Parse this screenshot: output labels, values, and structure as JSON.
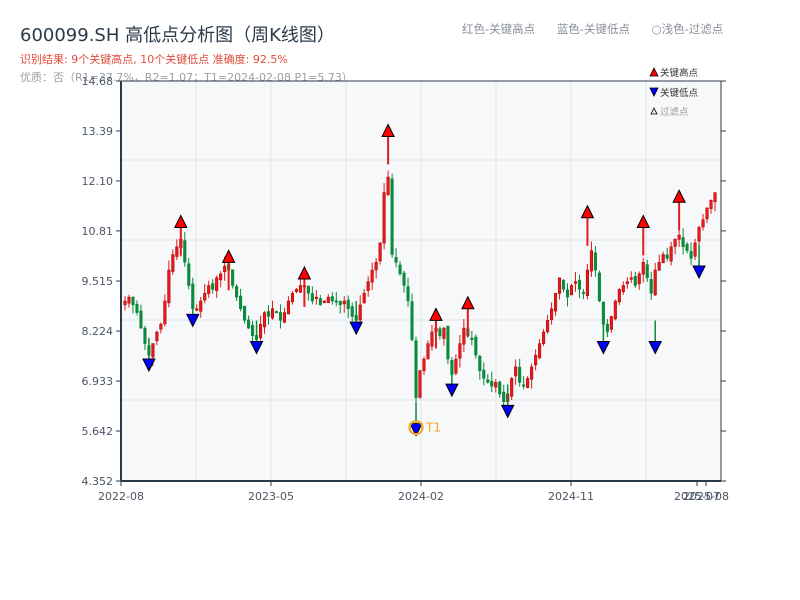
{
  "header": {
    "title": "600099.SH 高低点分析图（周K线图）",
    "result_line": "识别结果: 9个关键高点, 10个关键低点   准确度: 92.5%",
    "quality_line": "优质：否（R1=37.7%，R2=1.07；T1=2024-02-08 P1=5.73）"
  },
  "top_legend": {
    "red": "红色-关键高点",
    "blue": "蓝色-关键低点",
    "light": "○浅色-过滤点"
  },
  "plot_legend": {
    "high": "关键高点",
    "low": "关键低点",
    "filtered": "过滤点"
  },
  "colors": {
    "up": "#e41a1c",
    "up_border": "#b00000",
    "down": "#0a8a3a",
    "high_marker": "#ff0000",
    "low_marker": "#0000ff",
    "t1_ring": "#f5a623",
    "axis": "#2b3a4a",
    "grid": "#e3e6ea",
    "plot_bg": "#f6f8fa"
  },
  "chart_data": {
    "type": "candlestick",
    "title": "600099.SH 高低点分析图（周K线图）",
    "xlabel": "",
    "ylabel": "",
    "ylim": [
      4.352,
      14.68
    ],
    "y_ticks": [
      "4.352",
      "5.642",
      "6.933",
      "8.224",
      "9.515",
      "10.81",
      "12.10",
      "13.39",
      "14.68"
    ],
    "x_ticks": [
      "2022-08",
      "2023-05",
      "2024-02",
      "2024-11",
      "2025-07",
      "2025-08"
    ],
    "grid": true,
    "legend_position": "upper right",
    "annotation": {
      "label": "T1",
      "date": "2024-02-08",
      "price": 5.73
    },
    "key_highs": [
      {
        "x_index": 14,
        "price": 10.95
      },
      {
        "x_index": 26,
        "price": 10.05
      },
      {
        "x_index": 45,
        "price": 9.62
      },
      {
        "x_index": 66,
        "price": 13.3
      },
      {
        "x_index": 78,
        "price": 8.55
      },
      {
        "x_index": 86,
        "price": 8.85
      },
      {
        "x_index": 116,
        "price": 11.2
      },
      {
        "x_index": 130,
        "price": 10.95
      },
      {
        "x_index": 139,
        "price": 11.6
      }
    ],
    "key_lows": [
      {
        "x_index": 6,
        "price": 7.4
      },
      {
        "x_index": 17,
        "price": 8.55
      },
      {
        "x_index": 33,
        "price": 7.85
      },
      {
        "x_index": 58,
        "price": 8.35
      },
      {
        "x_index": 73,
        "price": 5.73
      },
      {
        "x_index": 82,
        "price": 6.75
      },
      {
        "x_index": 96,
        "price": 6.2
      },
      {
        "x_index": 120,
        "price": 7.85
      },
      {
        "x_index": 133,
        "price": 7.85
      },
      {
        "x_index": 144,
        "price": 9.8
      }
    ],
    "close_path": [
      9.0,
      9.1,
      8.9,
      8.7,
      8.3,
      7.9,
      7.6,
      7.9,
      8.2,
      8.4,
      9.0,
      9.8,
      10.2,
      10.4,
      10.6,
      10.0,
      9.4,
      8.8,
      8.8,
      9.0,
      9.2,
      9.4,
      9.3,
      9.6,
      9.7,
      9.9,
      9.8,
      9.4,
      9.1,
      8.8,
      8.5,
      8.3,
      8.1,
      8.0,
      8.4,
      8.7,
      8.6,
      8.8,
      8.7,
      8.5,
      8.7,
      9.0,
      9.2,
      9.3,
      9.4,
      9.4,
      9.2,
      9.0,
      9.1,
      8.9,
      9.0,
      9.1,
      9.0,
      9.0,
      8.9,
      9.0,
      8.8,
      8.6,
      8.5,
      8.9,
      9.2,
      9.5,
      9.8,
      10.0,
      10.5,
      11.8,
      12.2,
      10.2,
      10.0,
      9.7,
      9.4,
      9.0,
      8.0,
      6.5,
      7.2,
      7.5,
      7.9,
      8.2,
      8.3,
      8.1,
      8.3,
      7.5,
      7.1,
      7.5,
      7.9,
      8.3,
      8.1,
      8.0,
      7.6,
      7.2,
      7.0,
      6.9,
      6.8,
      6.9,
      6.6,
      6.4,
      6.6,
      7.0,
      7.3,
      6.9,
      6.8,
      7.0,
      7.3,
      7.6,
      7.9,
      8.2,
      8.5,
      8.8,
      9.2,
      9.6,
      9.3,
      9.1,
      9.4,
      9.5,
      9.3,
      9.2,
      9.8,
      10.3,
      9.8,
      9.0,
      8.4,
      8.2,
      8.6,
      9.0,
      9.3,
      9.4,
      9.5,
      9.6,
      9.4,
      9.7,
      10.0,
      9.6,
      9.2,
      9.8,
      10.0,
      10.2,
      10.1,
      10.4,
      10.6,
      10.7,
      10.4,
      10.3,
      10.1,
      10.5,
      10.9,
      11.1,
      11.4,
      11.6,
      11.8
    ]
  }
}
